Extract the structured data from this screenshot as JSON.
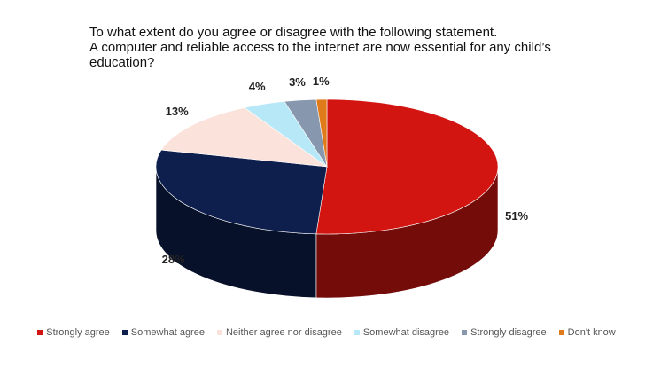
{
  "chart_data": {
    "type": "pie",
    "title": "To what extent do you agree or disagree with the following statement.",
    "subtitle": "A computer and reliable access to the internet are now essential for any child’s education?",
    "categories": [
      "Strongly agree",
      "Somewhat agree",
      "Neither agree nor disagree",
      "Somewhat disagree",
      "Strongly disagree",
      "Don't know"
    ],
    "values": [
      51,
      28,
      13,
      4,
      3,
      1
    ],
    "value_labels": [
      "51%",
      "28%",
      "13%",
      "4%",
      "3%",
      "1%"
    ],
    "colors": [
      "#d31512",
      "#0e1f4d",
      "#fbe3dc",
      "#b6e8f7",
      "#8797ae",
      "#e07b1c"
    ],
    "legend": "bottom"
  }
}
